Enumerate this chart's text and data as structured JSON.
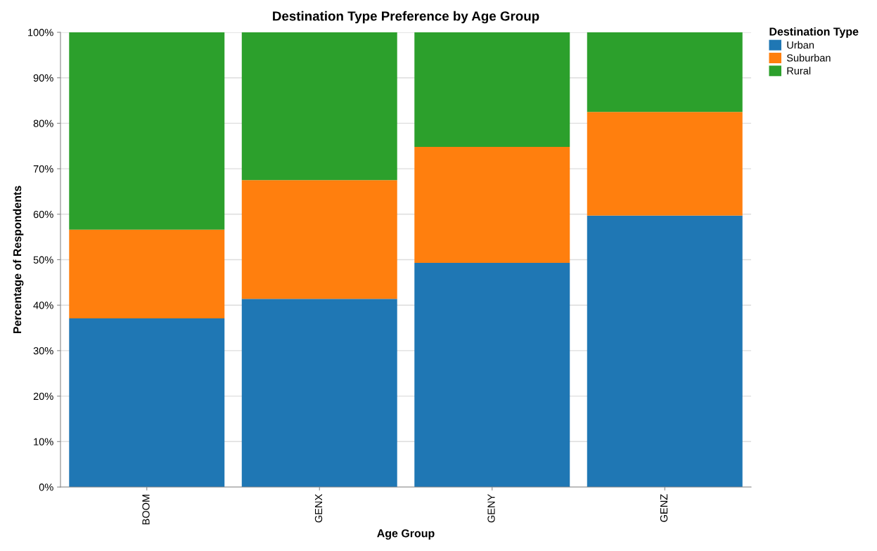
{
  "chart_data": {
    "type": "bar",
    "title": "Destination Type Preference by Age Group",
    "xlabel": "Age Group",
    "ylabel": "Percentage of Respondents",
    "legend_title": "Destination Type",
    "categories": [
      "BOOM",
      "GENX",
      "GENY",
      "GENZ"
    ],
    "stacked": true,
    "series": [
      {
        "name": "Urban",
        "color": "#1f77b4",
        "values": [
          37.1,
          41.4,
          49.3,
          59.7
        ]
      },
      {
        "name": "Suburban",
        "color": "#ff7f0e",
        "values": [
          19.5,
          26.1,
          25.5,
          22.8
        ]
      },
      {
        "name": "Rural",
        "color": "#2ca02c",
        "values": [
          43.4,
          32.5,
          25.2,
          17.5
        ]
      }
    ],
    "ylim": [
      0,
      100
    ],
    "yticks": [
      {
        "value": 0,
        "label": "0%"
      },
      {
        "value": 10,
        "label": "10%"
      },
      {
        "value": 20,
        "label": "20%"
      },
      {
        "value": 30,
        "label": "30%"
      },
      {
        "value": 40,
        "label": "40%"
      },
      {
        "value": 50,
        "label": "50%"
      },
      {
        "value": 60,
        "label": "60%"
      },
      {
        "value": 70,
        "label": "70%"
      },
      {
        "value": 80,
        "label": "80%"
      },
      {
        "value": 90,
        "label": "90%"
      },
      {
        "value": 100,
        "label": "100%"
      }
    ],
    "grid": "y",
    "legend": "top right"
  }
}
